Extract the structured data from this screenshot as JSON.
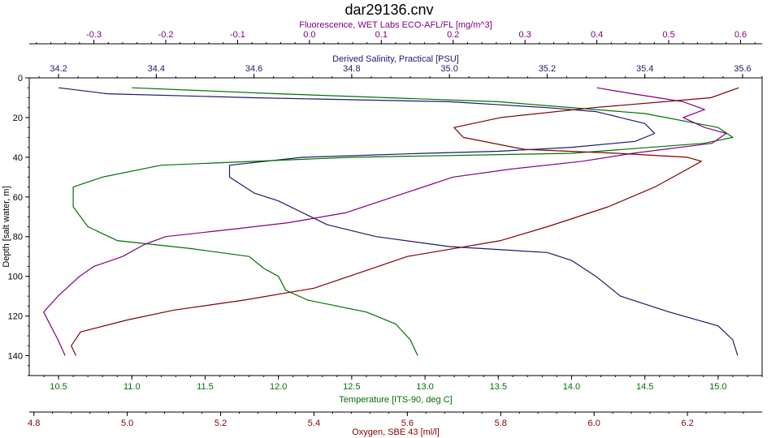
{
  "chart_data": {
    "type": "line",
    "title": "dar29136.cnv",
    "y_axis": {
      "label": "Depth [salt water, m]",
      "range": [
        0,
        150
      ],
      "ticks": [
        0,
        20,
        40,
        60,
        80,
        100,
        120,
        140
      ],
      "inverted": true
    },
    "x_axes": [
      {
        "key": "fluorescence",
        "label": "Fluorescence, WET Labs ECO-AFL/FL [mg/m^3]",
        "position": "top-1",
        "range": [
          -0.39,
          0.63
        ],
        "ticks": [
          -0.3,
          -0.2,
          -0.1,
          0.0,
          0.1,
          0.2,
          0.3,
          0.4,
          0.5,
          0.6
        ],
        "color": "#800080"
      },
      {
        "key": "salinity",
        "label": "Derived Salinity, Practical [PSU]",
        "position": "top-2",
        "range": [
          34.14,
          35.64
        ],
        "ticks": [
          34.2,
          34.4,
          34.6,
          34.8,
          35.0,
          35.2,
          35.4,
          35.6
        ],
        "color": "#1a1a6e"
      },
      {
        "key": "temperature",
        "label": "Temperature [ITS-90, deg C]",
        "position": "bottom-1",
        "range": [
          10.3,
          15.3
        ],
        "ticks": [
          10.5,
          11.0,
          11.5,
          12.0,
          12.5,
          13.0,
          13.5,
          14.0,
          14.5,
          15.0
        ],
        "color": "#007000"
      },
      {
        "key": "oxygen",
        "label": "Oxygen, SBE 43 [ml/l]",
        "position": "bottom-2",
        "range": [
          4.79,
          6.36
        ],
        "ticks": [
          4.8,
          5.0,
          5.2,
          5.4,
          5.6,
          5.8,
          6.0,
          6.2
        ],
        "color": "#800000"
      }
    ],
    "series": [
      {
        "axis": "salinity",
        "color": "#1a1a6e",
        "points": [
          [
            34.2,
            5
          ],
          [
            34.3,
            8
          ],
          [
            34.6,
            10
          ],
          [
            35.0,
            12
          ],
          [
            35.2,
            15
          ],
          [
            35.3,
            17
          ],
          [
            35.4,
            23
          ],
          [
            35.42,
            28
          ],
          [
            35.38,
            32
          ],
          [
            35.25,
            35
          ],
          [
            35.1,
            37
          ],
          [
            34.95,
            38
          ],
          [
            34.7,
            40
          ],
          [
            34.55,
            44
          ],
          [
            34.55,
            50
          ],
          [
            34.6,
            58
          ],
          [
            34.65,
            62
          ],
          [
            34.7,
            68
          ],
          [
            34.75,
            74
          ],
          [
            34.85,
            80
          ],
          [
            35.0,
            85
          ],
          [
            35.2,
            88
          ],
          [
            35.25,
            92
          ],
          [
            35.3,
            100
          ],
          [
            35.35,
            110
          ],
          [
            35.45,
            118
          ],
          [
            35.55,
            125
          ],
          [
            35.58,
            132
          ],
          [
            35.59,
            140
          ]
        ]
      },
      {
        "axis": "temperature",
        "color": "#007000",
        "points": [
          [
            11.0,
            5
          ],
          [
            12.0,
            8
          ],
          [
            13.5,
            12
          ],
          [
            14.5,
            18
          ],
          [
            15.0,
            25
          ],
          [
            15.1,
            30
          ],
          [
            14.9,
            33
          ],
          [
            14.0,
            38
          ],
          [
            12.5,
            40
          ],
          [
            11.2,
            44
          ],
          [
            10.8,
            50
          ],
          [
            10.6,
            55
          ],
          [
            10.6,
            65
          ],
          [
            10.7,
            75
          ],
          [
            10.9,
            82
          ],
          [
            11.4,
            86
          ],
          [
            11.8,
            90
          ],
          [
            11.9,
            96
          ],
          [
            12.0,
            100
          ],
          [
            12.05,
            107
          ],
          [
            12.2,
            112
          ],
          [
            12.6,
            118
          ],
          [
            12.8,
            124
          ],
          [
            12.9,
            132
          ],
          [
            12.95,
            140
          ]
        ]
      },
      {
        "axis": "fluorescence",
        "color": "#800080",
        "points": [
          [
            0.4,
            5
          ],
          [
            0.45,
            8
          ],
          [
            0.52,
            12
          ],
          [
            0.55,
            16
          ],
          [
            0.52,
            20
          ],
          [
            0.55,
            25
          ],
          [
            0.58,
            28
          ],
          [
            0.56,
            33
          ],
          [
            0.45,
            38
          ],
          [
            0.38,
            42
          ],
          [
            0.28,
            46
          ],
          [
            0.2,
            50
          ],
          [
            0.15,
            56
          ],
          [
            0.1,
            62
          ],
          [
            0.05,
            68
          ],
          [
            -0.03,
            73
          ],
          [
            -0.1,
            76
          ],
          [
            -0.2,
            80
          ],
          [
            -0.23,
            84
          ],
          [
            -0.26,
            90
          ],
          [
            -0.3,
            95
          ],
          [
            -0.32,
            100
          ],
          [
            -0.35,
            110
          ],
          [
            -0.37,
            118
          ],
          [
            -0.36,
            125
          ],
          [
            -0.35,
            132
          ],
          [
            -0.34,
            140
          ]
        ]
      },
      {
        "axis": "oxygen",
        "color": "#800000",
        "points": [
          [
            6.31,
            5
          ],
          [
            6.25,
            10
          ],
          [
            6.0,
            15
          ],
          [
            5.8,
            20
          ],
          [
            5.7,
            25
          ],
          [
            5.72,
            30
          ],
          [
            5.85,
            36
          ],
          [
            6.05,
            38
          ],
          [
            6.2,
            40
          ],
          [
            6.23,
            42
          ],
          [
            6.2,
            46
          ],
          [
            6.13,
            55
          ],
          [
            6.03,
            65
          ],
          [
            5.9,
            75
          ],
          [
            5.8,
            82
          ],
          [
            5.6,
            90
          ],
          [
            5.5,
            98
          ],
          [
            5.4,
            106
          ],
          [
            5.25,
            112
          ],
          [
            5.1,
            117
          ],
          [
            5.0,
            122
          ],
          [
            4.9,
            128
          ],
          [
            4.88,
            135
          ],
          [
            4.89,
            140
          ]
        ]
      }
    ]
  }
}
